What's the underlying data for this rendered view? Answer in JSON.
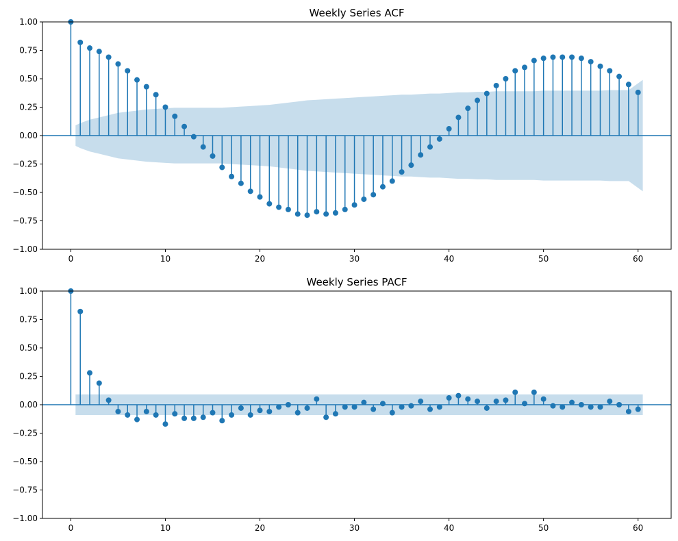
{
  "colors": {
    "stem": "#1f77b4",
    "band": "#1f77b4",
    "baseline": "#1f77b4",
    "axis": "#000000"
  },
  "chart_data": [
    {
      "type": "stem",
      "title": "Weekly Series ACF",
      "xlim": [
        -3,
        63.5
      ],
      "ylim": [
        -1.0,
        1.0
      ],
      "x_ticks": [
        0,
        10,
        20,
        30,
        40,
        50,
        60
      ],
      "x_tick_labels": [
        "0",
        "10",
        "20",
        "30",
        "40",
        "50",
        "60"
      ],
      "y_ticks": [
        1.0,
        0.75,
        0.5,
        0.25,
        0.0,
        -0.25,
        -0.5,
        -0.75,
        -1.0
      ],
      "y_tick_labels": [
        "1.00",
        "0.75",
        "0.50",
        "0.25",
        "0.00",
        "−0.25",
        "−0.50",
        "−0.75",
        "−1.00"
      ],
      "lags": [
        0,
        1,
        2,
        3,
        4,
        5,
        6,
        7,
        8,
        9,
        10,
        11,
        12,
        13,
        14,
        15,
        16,
        17,
        18,
        19,
        20,
        21,
        22,
        23,
        24,
        25,
        26,
        27,
        28,
        29,
        30,
        31,
        32,
        33,
        34,
        35,
        36,
        37,
        38,
        39,
        40,
        41,
        42,
        43,
        44,
        45,
        46,
        47,
        48,
        49,
        50,
        51,
        52,
        53,
        54,
        55,
        56,
        57,
        58,
        59,
        60
      ],
      "values": [
        1.0,
        0.82,
        0.77,
        0.74,
        0.69,
        0.63,
        0.57,
        0.49,
        0.43,
        0.36,
        0.25,
        0.17,
        0.08,
        -0.01,
        -0.1,
        -0.18,
        -0.28,
        -0.36,
        -0.42,
        -0.49,
        -0.54,
        -0.6,
        -0.63,
        -0.65,
        -0.69,
        -0.7,
        -0.67,
        -0.69,
        -0.68,
        -0.65,
        -0.61,
        -0.56,
        -0.52,
        -0.45,
        -0.4,
        -0.32,
        -0.26,
        -0.17,
        -0.1,
        -0.03,
        0.06,
        0.16,
        0.24,
        0.31,
        0.37,
        0.44,
        0.5,
        0.57,
        0.6,
        0.66,
        0.68,
        0.69,
        0.69,
        0.69,
        0.68,
        0.65,
        0.61,
        0.57,
        0.52,
        0.45,
        0.38
      ],
      "confint_lags": [
        0.5,
        1,
        2,
        3,
        4,
        5,
        6,
        7,
        8,
        9,
        10,
        11,
        12,
        13,
        14,
        15,
        16,
        17,
        18,
        19,
        20,
        21,
        22,
        23,
        24,
        25,
        26,
        27,
        28,
        29,
        30,
        31,
        32,
        33,
        34,
        35,
        36,
        37,
        38,
        39,
        40,
        41,
        42,
        43,
        44,
        45,
        46,
        47,
        48,
        49,
        50,
        51,
        52,
        53,
        54,
        55,
        56,
        57,
        58,
        59,
        60.5
      ],
      "confint": [
        0.09,
        0.11,
        0.14,
        0.16,
        0.18,
        0.2,
        0.21,
        0.22,
        0.23,
        0.235,
        0.24,
        0.245,
        0.245,
        0.245,
        0.245,
        0.245,
        0.245,
        0.25,
        0.255,
        0.26,
        0.265,
        0.27,
        0.28,
        0.29,
        0.3,
        0.31,
        0.315,
        0.32,
        0.325,
        0.33,
        0.335,
        0.34,
        0.345,
        0.35,
        0.355,
        0.36,
        0.36,
        0.365,
        0.37,
        0.37,
        0.375,
        0.38,
        0.38,
        0.385,
        0.385,
        0.39,
        0.39,
        0.39,
        0.39,
        0.39,
        0.395,
        0.395,
        0.395,
        0.395,
        0.395,
        0.395,
        0.395,
        0.4,
        0.4,
        0.4,
        0.49
      ]
    },
    {
      "type": "stem",
      "title": "Weekly Series PACF",
      "xlim": [
        -3,
        63.5
      ],
      "ylim": [
        -1.0,
        1.0
      ],
      "x_ticks": [
        0,
        10,
        20,
        30,
        40,
        50,
        60
      ],
      "x_tick_labels": [
        "0",
        "10",
        "20",
        "30",
        "40",
        "50",
        "60"
      ],
      "y_ticks": [
        1.0,
        0.75,
        0.5,
        0.25,
        0.0,
        -0.25,
        -0.5,
        -0.75,
        -1.0
      ],
      "y_tick_labels": [
        "1.00",
        "0.75",
        "0.50",
        "0.25",
        "0.00",
        "−0.25",
        "−0.50",
        "−0.75",
        "−1.00"
      ],
      "lags": [
        0,
        1,
        2,
        3,
        4,
        5,
        6,
        7,
        8,
        9,
        10,
        11,
        12,
        13,
        14,
        15,
        16,
        17,
        18,
        19,
        20,
        21,
        22,
        23,
        24,
        25,
        26,
        27,
        28,
        29,
        30,
        31,
        32,
        33,
        34,
        35,
        36,
        37,
        38,
        39,
        40,
        41,
        42,
        43,
        44,
        45,
        46,
        47,
        48,
        49,
        50,
        51,
        52,
        53,
        54,
        55,
        56,
        57,
        58,
        59,
        60
      ],
      "values": [
        1.0,
        0.82,
        0.28,
        0.19,
        0.04,
        -0.06,
        -0.09,
        -0.13,
        -0.06,
        -0.09,
        -0.17,
        -0.08,
        -0.12,
        -0.12,
        -0.11,
        -0.07,
        -0.14,
        -0.09,
        -0.03,
        -0.09,
        -0.05,
        -0.06,
        -0.02,
        0.0,
        -0.07,
        -0.03,
        0.05,
        -0.11,
        -0.08,
        -0.02,
        -0.02,
        0.02,
        -0.04,
        0.01,
        -0.07,
        -0.02,
        -0.01,
        0.03,
        -0.04,
        -0.02,
        0.06,
        0.08,
        0.05,
        0.03,
        -0.03,
        0.03,
        0.04,
        0.11,
        0.01,
        0.11,
        0.05,
        -0.01,
        -0.02,
        0.02,
        0.0,
        -0.02,
        -0.02,
        0.03,
        0.0,
        -0.06,
        -0.04
      ],
      "confint_lags": [
        0.5,
        60.5
      ],
      "confint": [
        0.09,
        0.09
      ]
    }
  ]
}
